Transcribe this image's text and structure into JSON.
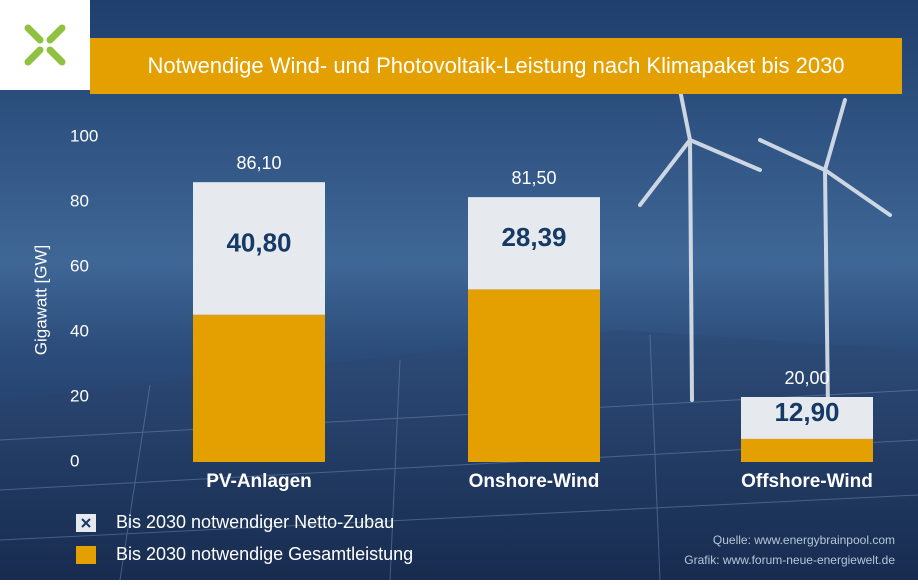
{
  "chart_data": {
    "type": "stacked-bar",
    "title": "Notwendige Wind- und Photovoltaik-Leistung nach Klimapaket bis 2030",
    "y_label": "Gigawatt [GW]",
    "categories": [
      "PV-Anlagen",
      "Onshore-Wind",
      "Offshore-Wind"
    ],
    "series": [
      {
        "name": "Bis 2030 notwendige Gesamtleistung",
        "color": "#e3a000",
        "values": [
          45.3,
          53.11,
          7.1
        ]
      },
      {
        "name": "Bis 2030 notwendiger Netto-Zubau",
        "color": "#e6e9ee",
        "values": [
          40.8,
          28.39,
          12.9
        ],
        "value_labels": [
          "40,80",
          "28,39",
          "12,90"
        ]
      }
    ],
    "totals": {
      "values": [
        86.1,
        81.5,
        20.0
      ],
      "value_labels": [
        "86,10",
        "81,50",
        "20,00"
      ]
    },
    "legend_order": [
      1,
      0
    ],
    "ylim": [
      0,
      100
    ],
    "yticks": [
      0,
      20,
      40,
      60,
      80,
      100
    ],
    "sources": [
      "Quelle: www.energybrainpool.com",
      "Grafik: www.forum-neue-energiewelt.de"
    ]
  }
}
